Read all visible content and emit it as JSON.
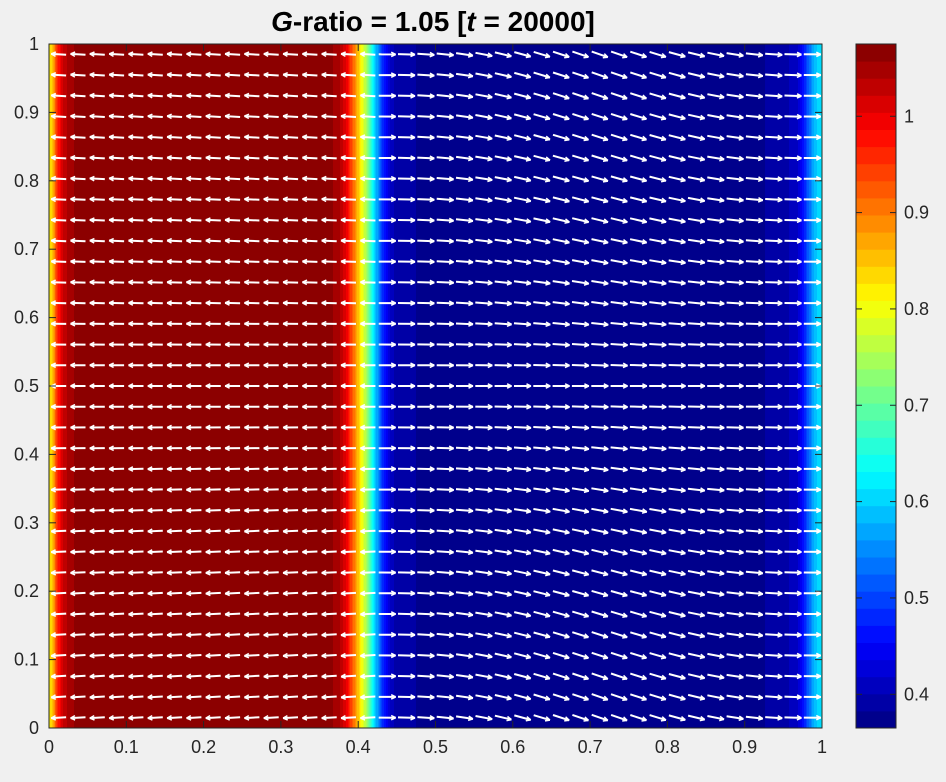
{
  "chart_data": {
    "type": "heatmap",
    "title": {
      "var": "G",
      "mid": "-ratio = 1.05 [",
      "tvar": "t",
      "end": " = 20000]"
    },
    "xlim": [
      0,
      1
    ],
    "ylim": [
      0,
      1
    ],
    "xticks": [
      0,
      0.1,
      0.2,
      0.3,
      0.4,
      0.5,
      0.6,
      0.7,
      0.8,
      0.9,
      1
    ],
    "xtick_labels": [
      "0",
      "0.1",
      "0.2",
      "0.3",
      "0.4",
      "0.5",
      "0.6",
      "0.7",
      "0.8",
      "0.9",
      "1"
    ],
    "yticks": [
      0,
      0.1,
      0.2,
      0.3,
      0.4,
      0.5,
      0.6,
      0.7,
      0.8,
      0.9,
      1
    ],
    "ytick_labels": [
      "0",
      "0.1",
      "0.2",
      "0.3",
      "0.4",
      "0.5",
      "0.6",
      "0.7",
      "0.8",
      "0.9",
      "1"
    ],
    "colormap": "jet",
    "clim": [
      0.365,
      1.075
    ],
    "colorbar_ticks": [
      0.4,
      0.5,
      0.6,
      0.7,
      0.8,
      0.9,
      1
    ],
    "colorbar_tick_labels": [
      "0.4",
      "0.5",
      "0.6",
      "0.7",
      "0.8",
      "0.9",
      "1"
    ],
    "field_profile_x": [
      0.0,
      0.005,
      0.01,
      0.015,
      0.02,
      0.03,
      0.04,
      0.06,
      0.1,
      0.2,
      0.3,
      0.36,
      0.375,
      0.385,
      0.39,
      0.4,
      0.41,
      0.42,
      0.43,
      0.44,
      0.45,
      0.5,
      0.6,
      0.8,
      0.9,
      0.95,
      0.97,
      0.98,
      0.99,
      1.0
    ],
    "field_profile_value": [
      0.82,
      0.85,
      0.95,
      1.0,
      1.03,
      1.055,
      1.065,
      1.07,
      1.072,
      1.072,
      1.07,
      1.065,
      1.05,
      1.0,
      0.95,
      0.85,
      0.75,
      0.62,
      0.5,
      0.42,
      0.39,
      0.375,
      0.37,
      0.37,
      0.375,
      0.39,
      0.42,
      0.5,
      0.58,
      0.62
    ],
    "quiver_color": "#ffffff",
    "quiver_grid": [
      40,
      33
    ]
  }
}
